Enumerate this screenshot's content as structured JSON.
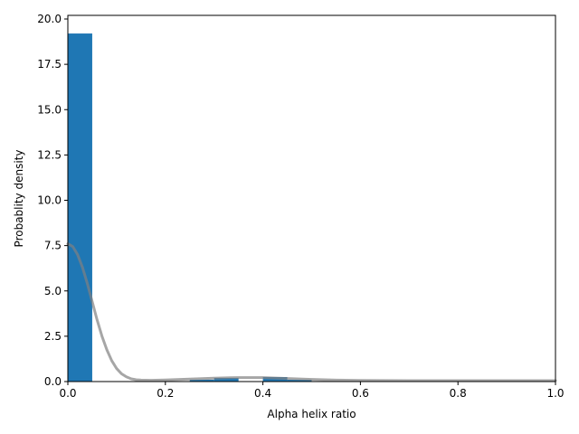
{
  "chart_data": {
    "type": "bar",
    "title": "",
    "xlabel": "Alpha helix ratio",
    "ylabel": "Probablity density",
    "xlim": [
      0,
      1.0
    ],
    "ylim": [
      0,
      20.2
    ],
    "xticks": [
      0.0,
      0.2,
      0.4,
      0.6,
      0.8,
      1.0
    ],
    "xtick_labels": [
      "0.0",
      "0.2",
      "0.4",
      "0.6",
      "0.8",
      "1.0"
    ],
    "yticks": [
      0.0,
      2.5,
      5.0,
      7.5,
      10.0,
      12.5,
      15.0,
      17.5,
      20.0
    ],
    "ytick_labels": [
      "0.0",
      "2.5",
      "5.0",
      "7.5",
      "10.0",
      "12.5",
      "15.0",
      "17.5",
      "20.0"
    ],
    "grid": false,
    "histogram": {
      "bin_width": 0.05,
      "bin_starts": [
        0.0,
        0.05,
        0.1,
        0.15,
        0.2,
        0.25,
        0.3,
        0.35,
        0.4,
        0.45,
        0.5,
        0.55,
        0.6,
        0.65,
        0.7,
        0.75,
        0.8,
        0.85,
        0.9,
        0.95
      ],
      "values": [
        19.2,
        0,
        0,
        0,
        0,
        0.1,
        0.2,
        0,
        0.25,
        0.1,
        0,
        0,
        0,
        0,
        0,
        0,
        0,
        0,
        0,
        0
      ],
      "color": "#1f77b4"
    },
    "kde_line": {
      "color": "#808080",
      "x": [
        0,
        0.01,
        0.02,
        0.03,
        0.04,
        0.05,
        0.06,
        0.07,
        0.08,
        0.09,
        0.1,
        0.11,
        0.12,
        0.13,
        0.14,
        0.15,
        0.17,
        0.2,
        0.25,
        0.3,
        0.35,
        0.4,
        0.45,
        0.5,
        0.55,
        0.6,
        0.7,
        0.8,
        0.9,
        1.0
      ],
      "y": [
        7.6,
        7.45,
        7.0,
        6.3,
        5.4,
        4.4,
        3.4,
        2.5,
        1.75,
        1.15,
        0.72,
        0.43,
        0.26,
        0.15,
        0.1,
        0.08,
        0.07,
        0.09,
        0.14,
        0.19,
        0.22,
        0.22,
        0.17,
        0.12,
        0.08,
        0.06,
        0.05,
        0.05,
        0.05,
        0.05
      ]
    }
  }
}
